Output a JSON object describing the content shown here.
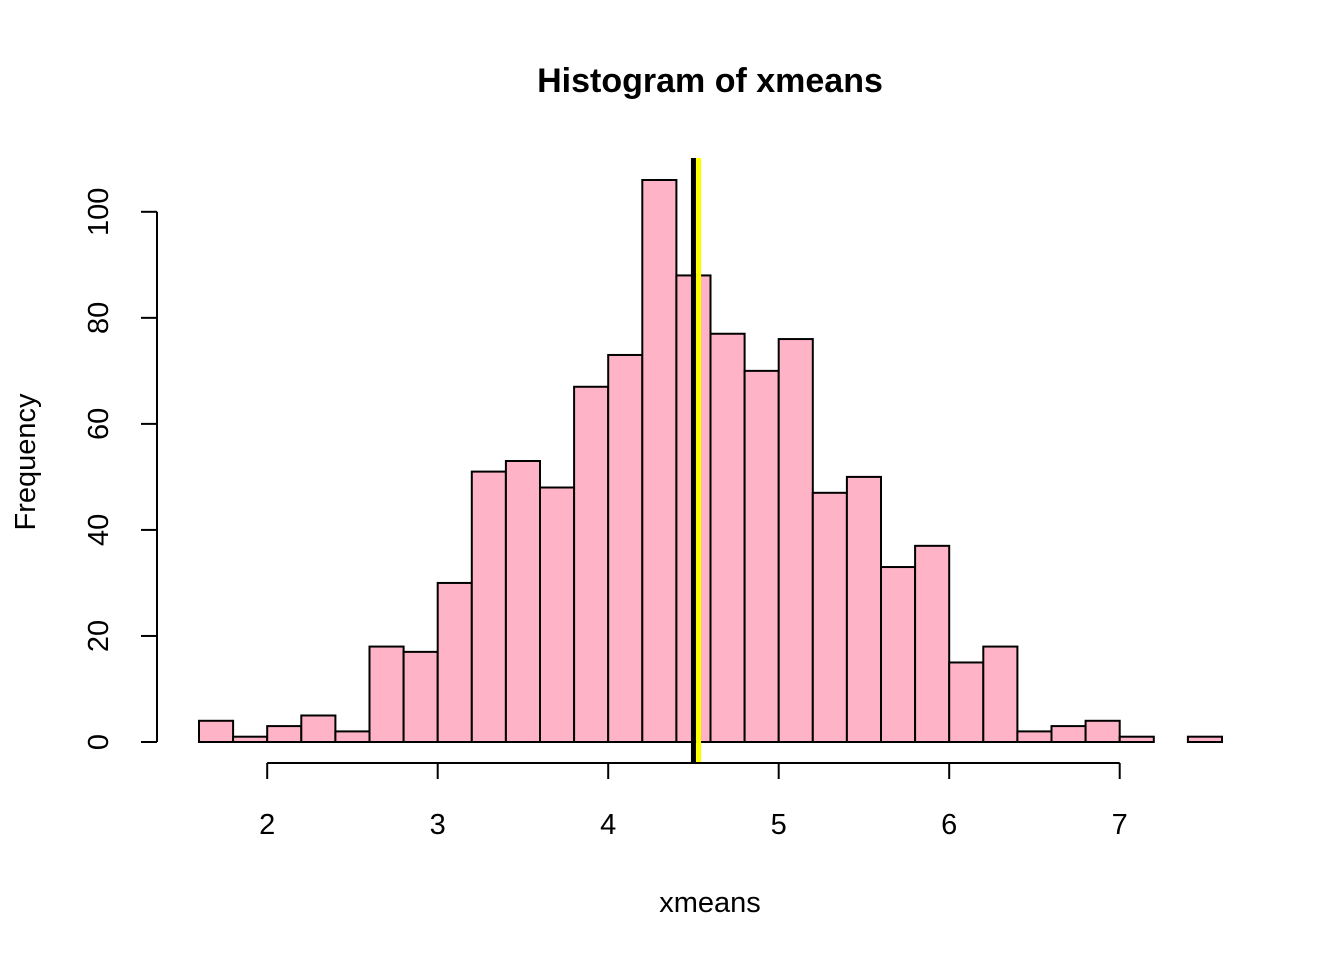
{
  "chart_data": {
    "type": "bar",
    "title": "Histogram of xmeans",
    "xlabel": "xmeans",
    "ylabel": "Frequency",
    "xlim": [
      1.6,
      7.6
    ],
    "ylim": [
      0,
      106
    ],
    "x_ticks": [
      2,
      3,
      4,
      5,
      6,
      7
    ],
    "y_ticks": [
      0,
      20,
      40,
      60,
      80,
      100
    ],
    "bin_width": 0.2,
    "bins": [
      {
        "start": 1.6,
        "end": 1.8,
        "count": 4
      },
      {
        "start": 1.8,
        "end": 2.0,
        "count": 1
      },
      {
        "start": 2.0,
        "end": 2.2,
        "count": 3
      },
      {
        "start": 2.2,
        "end": 2.4,
        "count": 5
      },
      {
        "start": 2.4,
        "end": 2.6,
        "count": 2
      },
      {
        "start": 2.6,
        "end": 2.8,
        "count": 18
      },
      {
        "start": 2.8,
        "end": 3.0,
        "count": 17
      },
      {
        "start": 3.0,
        "end": 3.2,
        "count": 30
      },
      {
        "start": 3.2,
        "end": 3.4,
        "count": 51
      },
      {
        "start": 3.4,
        "end": 3.6,
        "count": 53
      },
      {
        "start": 3.6,
        "end": 3.8,
        "count": 48
      },
      {
        "start": 3.8,
        "end": 4.0,
        "count": 67
      },
      {
        "start": 4.0,
        "end": 4.2,
        "count": 73
      },
      {
        "start": 4.2,
        "end": 4.4,
        "count": 106
      },
      {
        "start": 4.4,
        "end": 4.6,
        "count": 88
      },
      {
        "start": 4.6,
        "end": 4.8,
        "count": 77
      },
      {
        "start": 4.8,
        "end": 5.0,
        "count": 70
      },
      {
        "start": 5.0,
        "end": 5.2,
        "count": 76
      },
      {
        "start": 5.2,
        "end": 5.4,
        "count": 47
      },
      {
        "start": 5.4,
        "end": 5.6,
        "count": 50
      },
      {
        "start": 5.6,
        "end": 5.8,
        "count": 33
      },
      {
        "start": 5.8,
        "end": 6.0,
        "count": 37
      },
      {
        "start": 6.0,
        "end": 6.2,
        "count": 15
      },
      {
        "start": 6.2,
        "end": 6.4,
        "count": 18
      },
      {
        "start": 6.4,
        "end": 6.6,
        "count": 2
      },
      {
        "start": 6.6,
        "end": 6.8,
        "count": 3
      },
      {
        "start": 6.8,
        "end": 7.0,
        "count": 4
      },
      {
        "start": 7.0,
        "end": 7.2,
        "count": 1
      },
      {
        "start": 7.2,
        "end": 7.4,
        "count": 0
      },
      {
        "start": 7.4,
        "end": 7.6,
        "count": 1
      }
    ],
    "vertical_lines": [
      {
        "x": 4.5,
        "color": "#000000"
      },
      {
        "x": 4.53,
        "color": "#ffff00"
      }
    ],
    "bar_color": "#ffb3c6",
    "grid": false,
    "legend": "none"
  }
}
